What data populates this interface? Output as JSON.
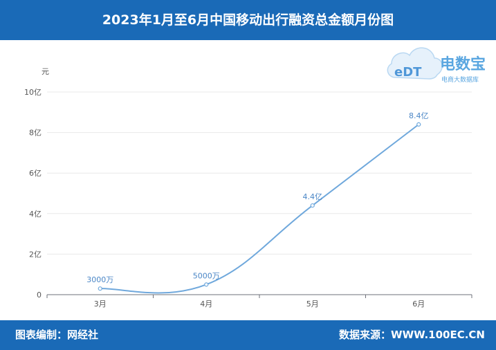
{
  "title": "2023年1月至6月中国移动出行融资总金额月份图",
  "footer": {
    "editor": "图表编制：网经社",
    "source": "数据来源：WWW.100EC.CN"
  },
  "logo": {
    "brand": "电数宝",
    "subtitle": "电商大数据库",
    "mark": "eDT"
  },
  "chart_data": {
    "type": "line",
    "title": "2023年1月至6月中国移动出行融资总金额月份图",
    "ylabel": "元",
    "xlabel": "",
    "categories": [
      "3月",
      "4月",
      "5月",
      "6月"
    ],
    "y_ticks": [
      "0",
      "2亿",
      "4亿",
      "6亿",
      "8亿",
      "10亿"
    ],
    "ylim": [
      0,
      10
    ],
    "y_unit": "亿元",
    "series": [
      {
        "values": [
          0.3,
          0.5,
          4.4,
          8.4
        ],
        "labels": [
          "3000万",
          "5000万",
          "4.4亿",
          "8.4亿"
        ]
      }
    ],
    "grid": true,
    "legend": "none",
    "line_color": "#6fa8dc"
  }
}
